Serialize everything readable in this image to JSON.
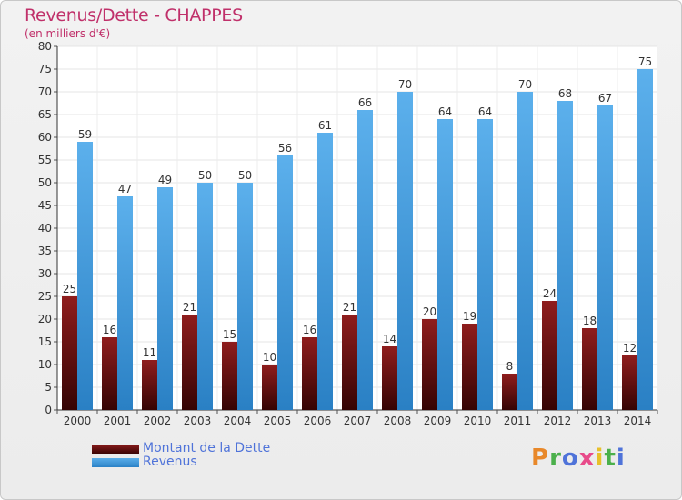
{
  "header": {
    "title": "Revenus/Dette - CHAPPES",
    "subtitle": "(en milliers d'€)"
  },
  "legend": {
    "items": [
      {
        "label": "Montant de la Dette",
        "color": "#7a0f0f"
      },
      {
        "label": "Revenus",
        "color": "#3c97dd"
      }
    ]
  },
  "logo": {
    "text": "Proxiti",
    "colors": [
      "#e8882a",
      "#4bb04b",
      "#4f73d9",
      "#e84b8a",
      "#e8c02a",
      "#4bb04b",
      "#4f73d9"
    ]
  },
  "chart_data": {
    "type": "bar",
    "title": "Revenus/Dette - CHAPPES",
    "subtitle": "(en milliers d'€)",
    "categories": [
      "2000",
      "2001",
      "2002",
      "2003",
      "2004",
      "2005",
      "2006",
      "2007",
      "2008",
      "2009",
      "2010",
      "2011",
      "2012",
      "2013",
      "2014"
    ],
    "series": [
      {
        "name": "Montant de la Dette",
        "color": "#6b0b0b",
        "values": [
          25,
          16,
          11,
          21,
          15,
          10,
          16,
          21,
          14,
          20,
          19,
          8,
          24,
          18,
          12
        ]
      },
      {
        "name": "Revenus",
        "color": "#3c97dd",
        "values": [
          59,
          47,
          49,
          50,
          50,
          56,
          61,
          66,
          70,
          64,
          64,
          70,
          68,
          67,
          75
        ]
      }
    ],
    "ylim": [
      0,
      80
    ],
    "yticks": [
      0,
      5,
      10,
      15,
      20,
      25,
      30,
      35,
      40,
      45,
      50,
      55,
      60,
      65,
      70,
      75,
      80
    ],
    "grid": true,
    "legend_position": "bottom-left"
  }
}
